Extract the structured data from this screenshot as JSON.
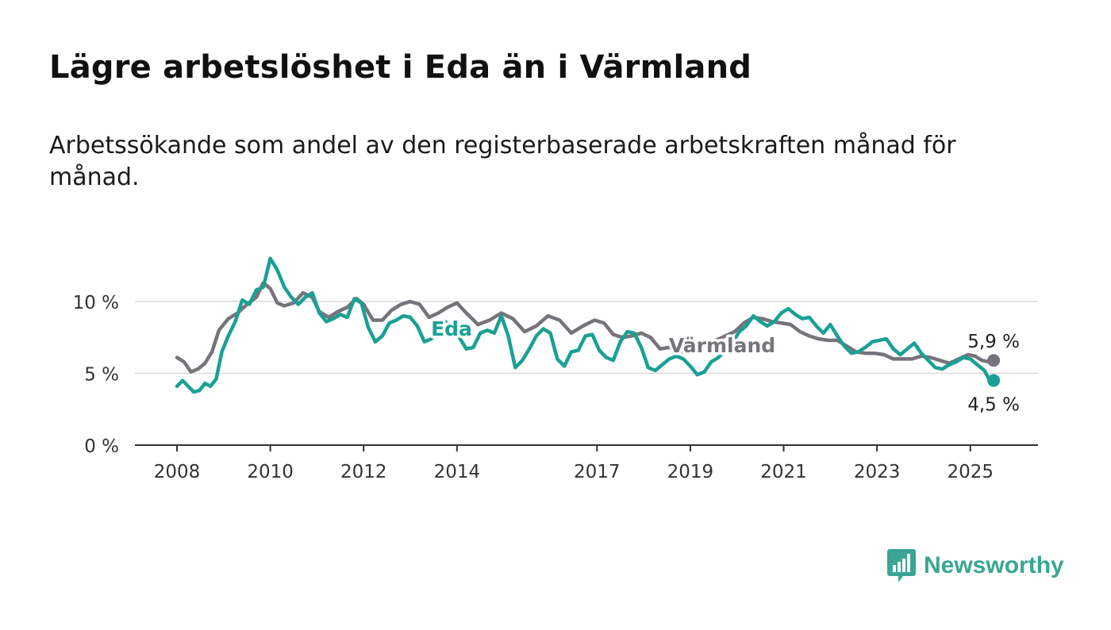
{
  "title": "Lägre arbetslöshet i Eda än i Värmland",
  "subtitle": "Arbetssökande som andel av den registerbaserade arbetskraften månad för månad.",
  "brand": {
    "name": "Newsworthy",
    "icon": "newsworthy-bar-chart-icon",
    "color": "#3aa594"
  },
  "chart_data": {
    "type": "line",
    "title": "Lägre arbetslöshet i Eda än i Värmland",
    "subtitle": "Arbetssökande som andel av den registerbaserade arbetskraften månad för månad.",
    "xlabel": "",
    "ylabel": "",
    "xlim": [
      2008.0,
      2025.6
    ],
    "ylim": [
      0,
      13
    ],
    "y_ticks": [
      0,
      5,
      10
    ],
    "y_tick_labels": [
      "0 %",
      "5 %",
      "10 %"
    ],
    "x_ticks": [
      2008,
      2010,
      2012,
      2014,
      2017,
      2019,
      2021,
      2023,
      2025
    ],
    "x_tick_labels": [
      "2008",
      "2010",
      "2012",
      "2014",
      "2017",
      "2019",
      "2021",
      "2023",
      "2025"
    ],
    "grid": true,
    "legend": "inline labels",
    "series": [
      {
        "name": "Värmland",
        "color": "#76747a",
        "end_label": "5,9 %",
        "x": [
          2008.0,
          2008.15,
          2008.3,
          2008.45,
          2008.6,
          2008.75,
          2008.9,
          2009.1,
          2009.3,
          2009.5,
          2009.7,
          2009.85,
          2010.0,
          2010.15,
          2010.3,
          2010.5,
          2010.7,
          2010.9,
          2011.05,
          2011.25,
          2011.45,
          2011.65,
          2011.85,
          2012.0,
          2012.2,
          2012.4,
          2012.6,
          2012.8,
          2013.0,
          2013.2,
          2013.4,
          2013.6,
          2013.8,
          2014.0,
          2014.2,
          2014.45,
          2014.7,
          2014.95,
          2015.2,
          2015.45,
          2015.7,
          2015.95,
          2016.2,
          2016.45,
          2016.7,
          2016.95,
          2017.15,
          2017.35,
          2017.55,
          2017.75,
          2017.95,
          2018.15,
          2018.35,
          2018.55,
          2018.75,
          2018.95,
          2019.15,
          2019.35,
          2019.55,
          2019.75,
          2019.95,
          2020.15,
          2020.35,
          2020.55,
          2020.75,
          2020.95,
          2021.15,
          2021.35,
          2021.55,
          2021.75,
          2021.95,
          2022.15,
          2022.35,
          2022.55,
          2022.75,
          2022.95,
          2023.15,
          2023.35,
          2023.55,
          2023.75,
          2023.95,
          2024.15,
          2024.35,
          2024.55,
          2024.75,
          2024.95,
          2025.1,
          2025.25,
          2025.4,
          2025.5
        ],
        "y": [
          6.1,
          5.8,
          5.1,
          5.3,
          5.7,
          6.5,
          8.0,
          8.8,
          9.2,
          9.8,
          10.3,
          11.3,
          10.9,
          9.9,
          9.7,
          9.9,
          10.6,
          10.3,
          9.3,
          8.9,
          9.3,
          9.6,
          10.2,
          9.8,
          8.7,
          8.7,
          9.4,
          9.8,
          10.0,
          9.8,
          8.9,
          9.2,
          9.6,
          9.9,
          9.2,
          8.4,
          8.7,
          9.2,
          8.8,
          7.9,
          8.3,
          9.0,
          8.7,
          7.8,
          8.3,
          8.7,
          8.5,
          7.7,
          7.5,
          7.6,
          7.8,
          7.5,
          6.7,
          6.8,
          6.6,
          6.4,
          6.6,
          7.1,
          7.3,
          7.6,
          7.9,
          8.5,
          8.9,
          8.8,
          8.6,
          8.5,
          8.4,
          7.9,
          7.6,
          7.4,
          7.3,
          7.3,
          6.9,
          6.5,
          6.4,
          6.4,
          6.3,
          6.0,
          6.0,
          6.0,
          6.2,
          6.1,
          5.9,
          5.7,
          6.0,
          6.3,
          6.2,
          5.9,
          5.8,
          5.9
        ]
      },
      {
        "name": "Eda",
        "color": "#1aa095",
        "end_label": "4,5 %",
        "x": [
          2008.0,
          2008.12,
          2008.24,
          2008.36,
          2008.48,
          2008.6,
          2008.72,
          2008.84,
          2008.96,
          2009.1,
          2009.25,
          2009.4,
          2009.55,
          2009.7,
          2009.85,
          2010.0,
          2010.15,
          2010.3,
          2010.45,
          2010.6,
          2010.75,
          2010.9,
          2011.05,
          2011.2,
          2011.35,
          2011.5,
          2011.65,
          2011.8,
          2011.95,
          2012.1,
          2012.25,
          2012.4,
          2012.55,
          2012.7,
          2012.85,
          2013.0,
          2013.15,
          2013.3,
          2013.45,
          2013.6,
          2013.75,
          2013.9,
          2014.05,
          2014.2,
          2014.35,
          2014.5,
          2014.65,
          2014.8,
          2014.95,
          2015.1,
          2015.25,
          2015.4,
          2015.55,
          2015.7,
          2015.85,
          2016.0,
          2016.15,
          2016.3,
          2016.45,
          2016.6,
          2016.75,
          2016.9,
          2017.05,
          2017.2,
          2017.35,
          2017.5,
          2017.65,
          2017.8,
          2017.95,
          2018.1,
          2018.25,
          2018.4,
          2018.55,
          2018.7,
          2018.85,
          2019.0,
          2019.15,
          2019.3,
          2019.45,
          2019.6,
          2019.75,
          2019.9,
          2020.05,
          2020.2,
          2020.35,
          2020.5,
          2020.65,
          2020.8,
          2020.95,
          2021.1,
          2021.25,
          2021.4,
          2021.55,
          2021.7,
          2021.85,
          2022.0,
          2022.15,
          2022.3,
          2022.45,
          2022.6,
          2022.75,
          2022.9,
          2023.05,
          2023.2,
          2023.35,
          2023.5,
          2023.65,
          2023.8,
          2023.95,
          2024.1,
          2024.25,
          2024.4,
          2024.55,
          2024.7,
          2024.85,
          2025.0,
          2025.15,
          2025.3,
          2025.4,
          2025.5
        ],
        "y": [
          4.1,
          4.5,
          4.1,
          3.7,
          3.8,
          4.3,
          4.1,
          4.6,
          6.5,
          7.6,
          8.6,
          10.1,
          9.8,
          10.8,
          11.0,
          13.0,
          12.2,
          11.0,
          10.3,
          9.8,
          10.3,
          10.6,
          9.2,
          8.6,
          8.8,
          9.1,
          8.9,
          10.2,
          9.9,
          8.2,
          7.2,
          7.6,
          8.5,
          8.7,
          9.0,
          8.9,
          8.3,
          7.2,
          7.4,
          8.1,
          8.6,
          7.9,
          7.5,
          6.7,
          6.8,
          7.8,
          8.0,
          7.8,
          9.0,
          7.6,
          5.4,
          5.9,
          6.7,
          7.6,
          8.1,
          7.8,
          6.0,
          5.5,
          6.5,
          6.6,
          7.6,
          7.7,
          6.6,
          6.1,
          5.9,
          7.2,
          7.9,
          7.8,
          6.8,
          5.4,
          5.2,
          5.6,
          6.0,
          6.2,
          6.0,
          5.5,
          4.9,
          5.1,
          5.8,
          6.1,
          6.6,
          7.1,
          7.9,
          8.3,
          9.0,
          8.6,
          8.3,
          8.6,
          9.2,
          9.5,
          9.1,
          8.8,
          8.9,
          8.3,
          7.8,
          8.4,
          7.6,
          6.9,
          6.4,
          6.5,
          6.8,
          7.2,
          7.3,
          7.4,
          6.7,
          6.3,
          6.7,
          7.1,
          6.4,
          5.9,
          5.4,
          5.3,
          5.6,
          5.8,
          6.1,
          6.0,
          5.6,
          5.2,
          4.6,
          4.5
        ]
      }
    ]
  }
}
